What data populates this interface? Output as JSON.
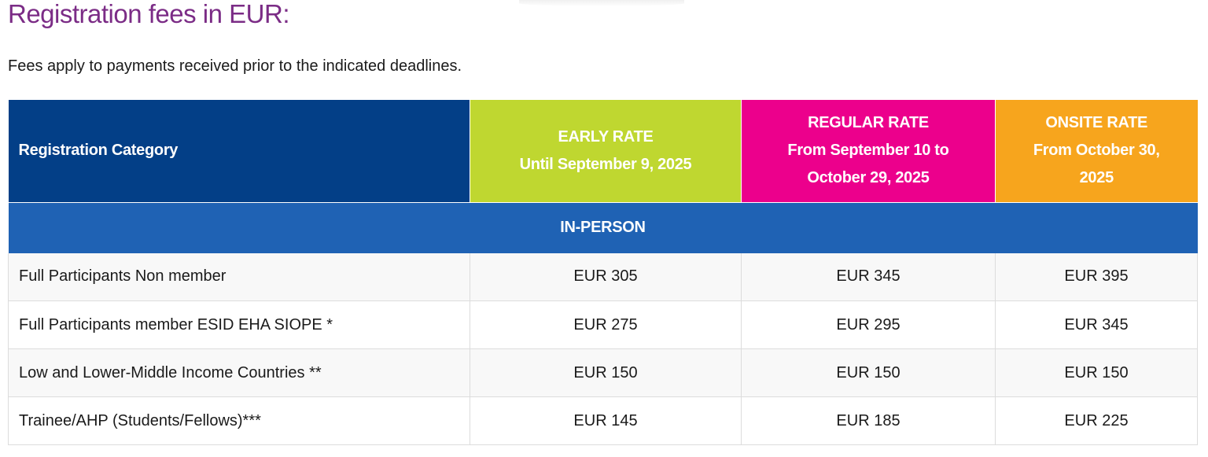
{
  "title": "Registration fees in EUR:",
  "intro": "Fees apply to payments received prior to the indicated deadlines.",
  "colors": {
    "title": "#7b2c86",
    "category_header": "#033f87",
    "early": "#bfd730",
    "regular": "#ec008c",
    "onsite": "#f7a51d",
    "section": "#1f62b4"
  },
  "table": {
    "headers": [
      {
        "lines": [
          "Registration Category"
        ]
      },
      {
        "lines": [
          "EARLY RATE",
          "Until September 9, 2025"
        ]
      },
      {
        "lines": [
          "REGULAR RATE",
          "From September 10 to",
          "October 29, 2025"
        ]
      },
      {
        "lines": [
          "ONSITE RATE",
          "From October 30,",
          "2025"
        ]
      }
    ],
    "section_label": "IN-PERSON",
    "rows": [
      {
        "category": "Full Participants Non member",
        "early": "EUR 305",
        "regular": "EUR 345",
        "onsite": "EUR 395"
      },
      {
        "category": "Full Participants member ESID EHA SIOPE *",
        "early": "EUR 275",
        "regular": "EUR 295",
        "onsite": "EUR 345"
      },
      {
        "category": "Low and Lower-Middle Income Countries **",
        "early": "EUR 150",
        "regular": "EUR 150",
        "onsite": "EUR 150"
      },
      {
        "category": "Trainee/AHP (Students/Fellows)***",
        "early": "EUR 145",
        "regular": "EUR 185",
        "onsite": "EUR 225"
      }
    ]
  }
}
